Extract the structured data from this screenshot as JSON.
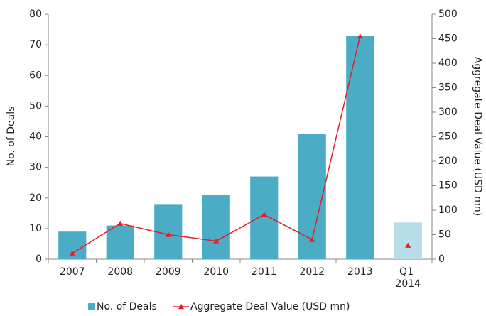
{
  "chart_data": {
    "type": "bar_line",
    "categories": [
      "2007",
      "2008",
      "2009",
      "2010",
      "2011",
      "2012",
      "2013",
      "Q1 2014"
    ],
    "partial": [
      false,
      false,
      false,
      false,
      false,
      false,
      false,
      true
    ],
    "partial_color": "#b7dde8",
    "y_label": "No. of Deals",
    "y2_label": "Aggregate Deal Value (USD mn)",
    "series": [
      {
        "name": "No. of Deals",
        "kind": "bar",
        "color": "#4bacc6",
        "values": [
          9,
          11,
          18,
          21,
          27,
          41,
          73,
          12
        ]
      },
      {
        "name": "Aggregate Deal Value (USD mn)",
        "kind": "line",
        "axis": "y2",
        "color": "#e31e24",
        "values": [
          12,
          73,
          50,
          37,
          91,
          40,
          455,
          28
        ]
      }
    ],
    "ylim": [
      0,
      80
    ],
    "yticks": [
      0,
      10,
      20,
      30,
      40,
      50,
      60,
      70,
      80
    ],
    "y2lim": [
      0,
      500
    ],
    "y2ticks": [
      0,
      50,
      100,
      150,
      200,
      250,
      300,
      350,
      400,
      450,
      500
    ],
    "grid": false,
    "legend": "bottom"
  }
}
